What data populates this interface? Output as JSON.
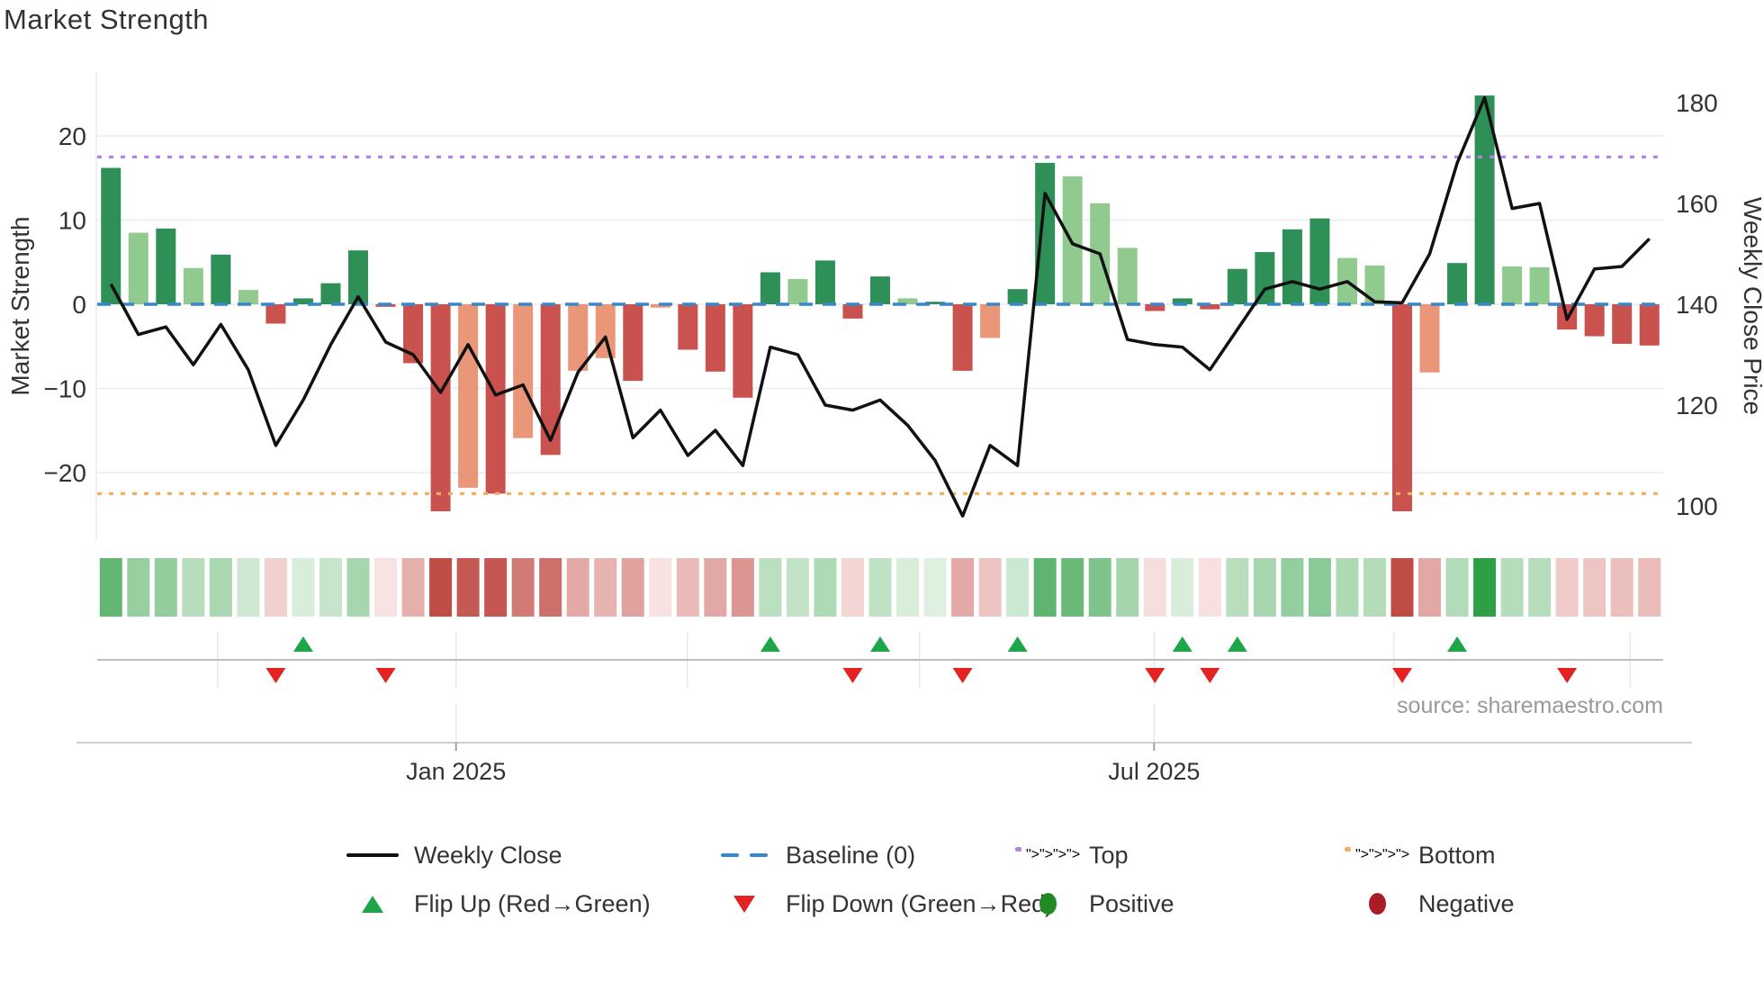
{
  "title": "Market Strength",
  "axes": {
    "left_label": "Market Strength",
    "right_label": "Weekly Close Price",
    "left_ticks": [
      20,
      10,
      0,
      -10,
      -20
    ],
    "right_ticks": [
      180,
      160,
      140,
      120,
      100
    ],
    "x_tick_labels": [
      "Jan 2025",
      "Jul 2025"
    ]
  },
  "source_text": "source: sharemaestro.com",
  "legend": {
    "rows": [
      [
        {
          "swatch": "line",
          "label": "Weekly Close"
        },
        {
          "swatch": "dash",
          "label": "Baseline (0)"
        },
        {
          "swatch": "dots-purple",
          "label": "Top"
        },
        {
          "swatch": "dots-orange",
          "label": "Bottom"
        }
      ],
      [
        {
          "swatch": "tri-up",
          "label": "Flip Up (Red→Green)"
        },
        {
          "swatch": "tri-down",
          "label": "Flip Down (Green→Red)"
        },
        {
          "swatch": "dot-green",
          "label": "Positive"
        },
        {
          "swatch": "dot-red",
          "label": "Negative"
        }
      ]
    ]
  },
  "colors": {
    "bar_dark_green": "#2e8f57",
    "bar_light_green": "#90ca8f",
    "bar_dark_red": "#c9524e",
    "bar_salmon": "#ea9678",
    "line": "#111111",
    "baseline": "#3a87c8",
    "top": "#b185e3",
    "bottom": "#f5ad66",
    "flip_up": "#1da648",
    "flip_down": "#e32222",
    "positive_dot": "#1f8b22",
    "negative_dot": "#a81e24",
    "grid": "#ebebf0",
    "axis_line": "#cfcfcf",
    "marker_axis": "#bdbdbd",
    "text": "#333333",
    "muted": "#999999"
  },
  "chart_data": {
    "type": "bar+line",
    "weeks": 57,
    "title": "Market Strength",
    "ylabel_left": "Market Strength",
    "ylabel_right": "Weekly Close Price",
    "ylim_left": [
      -28,
      27.6
    ],
    "ylim_right": [
      100,
      180
    ],
    "grid": "horizontal-only",
    "legend_position": "bottom",
    "baseline": 0,
    "top_line": 17.5,
    "bottom_line": -22.5,
    "strength": [
      16.2,
      8.5,
      9.0,
      4.3,
      5.9,
      1.7,
      -2.3,
      0.7,
      2.5,
      6.4,
      -0.3,
      -7.0,
      -24.6,
      -21.8,
      -22.5,
      -15.9,
      -17.9,
      -7.9,
      -6.4,
      -9.1,
      -0.4,
      -5.4,
      -8.0,
      -11.1,
      3.8,
      3.0,
      5.2,
      -1.7,
      3.3,
      0.7,
      0.3,
      -7.9,
      -4.0,
      1.8,
      16.8,
      15.2,
      12.0,
      6.7,
      -0.8,
      0.7,
      -0.6,
      4.2,
      6.2,
      8.9,
      10.2,
      5.5,
      4.6,
      -24.6,
      -8.1,
      4.9,
      24.8,
      4.5,
      4.4,
      -3.0,
      -3.8,
      -4.7,
      -4.9
    ],
    "strength_shade": [
      "G",
      "g",
      "G",
      "g",
      "G",
      "g",
      "R",
      "G",
      "G",
      "G",
      "R",
      "R",
      "R",
      "r",
      "R",
      "r",
      "R",
      "r",
      "r",
      "R",
      "r",
      "R",
      "R",
      "R",
      "G",
      "g",
      "G",
      "R",
      "G",
      "g",
      "G",
      "R",
      "r",
      "G",
      "G",
      "g",
      "g",
      "g",
      "R",
      "G",
      "R",
      "G",
      "G",
      "G",
      "G",
      "g",
      "g",
      "R",
      "r",
      "G",
      "G",
      "g",
      "g",
      "R",
      "R",
      "R",
      "R"
    ],
    "weekly_close": [
      144,
      134,
      135.5,
      128,
      136,
      127,
      112,
      121,
      132,
      141.5,
      132.5,
      130,
      122.5,
      132,
      122,
      124,
      113,
      126.5,
      133.5,
      113.5,
      119,
      110,
      115,
      108,
      131.5,
      130,
      120,
      119,
      121,
      116,
      109,
      98,
      112,
      108,
      162,
      152,
      150,
      133,
      132,
      131.5,
      127,
      135,
      143,
      144.5,
      143,
      144.5,
      140.5,
      140.3,
      150,
      168,
      181,
      159,
      160,
      137,
      147,
      147.5,
      153
    ],
    "flip_up_weeks": [
      7,
      24,
      28,
      33,
      39,
      41,
      49
    ],
    "flip_down_weeks": [
      6,
      10,
      27,
      31,
      38,
      40,
      47,
      53
    ],
    "x_major_tick_weeks": [
      13.06,
      38.47
    ],
    "x_minor_tick_weeks": [
      4.38,
      13.06,
      21.48,
      29.93,
      38.47,
      47.2,
      55.8
    ]
  }
}
